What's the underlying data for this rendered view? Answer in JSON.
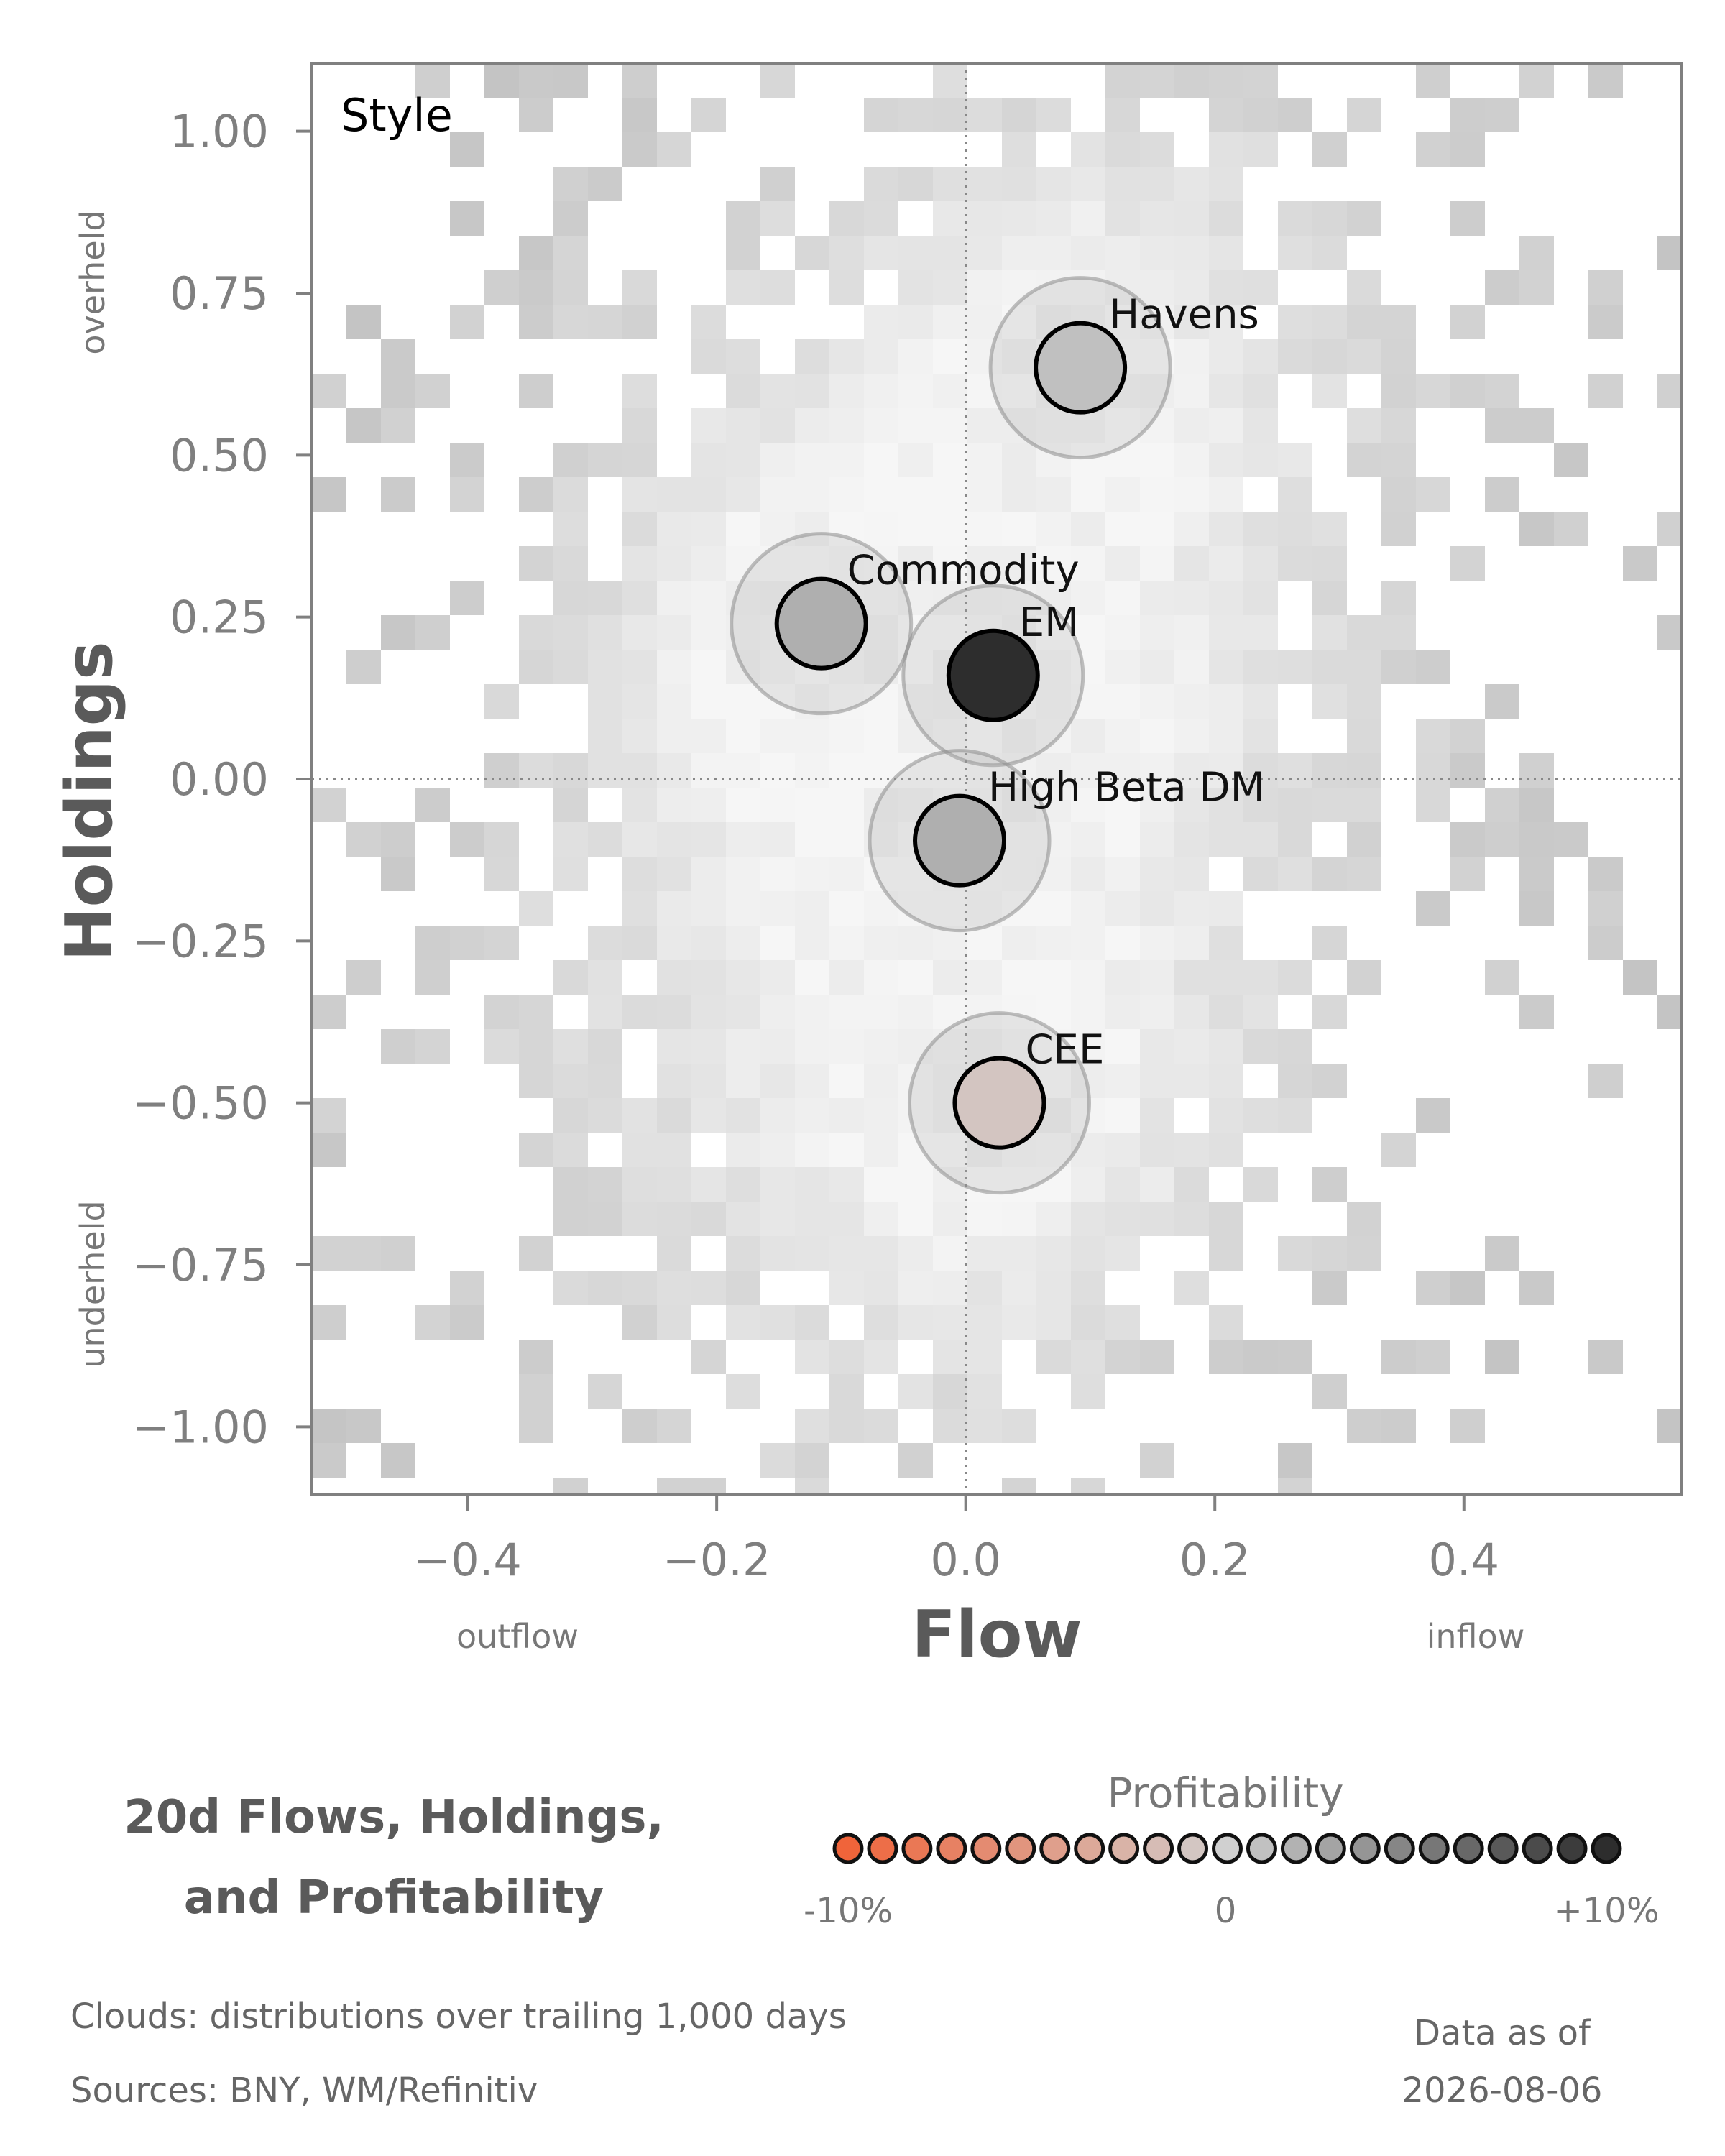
{
  "chart_data": {
    "type": "scatter",
    "title": "",
    "panel_label": "Style",
    "xlabel": "Flow",
    "ylabel": "Holdings",
    "x_hint_low": "outflow",
    "x_hint_high": "inflow",
    "y_hint_high": "overheld",
    "y_hint_low": "underheld",
    "xlim": [
      -0.525,
      0.575
    ],
    "ylim": [
      -1.105,
      1.105
    ],
    "xticks": [
      -0.4,
      -0.2,
      0.0,
      0.2,
      0.4
    ],
    "xtick_labels": [
      "−0.4",
      "−0.2",
      "0.0",
      "0.2",
      "0.4"
    ],
    "yticks": [
      1.0,
      0.75,
      0.5,
      0.25,
      0.0,
      -0.25,
      -0.5,
      -0.75,
      -1.0
    ],
    "ytick_labels": [
      "1.00",
      "0.75",
      "0.50",
      "0.25",
      "0.00",
      "−0.25",
      "−0.50",
      "−0.75",
      "−1.00"
    ],
    "grid": false,
    "reference_lines": {
      "x": 0.0,
      "y": 0.0
    },
    "points": [
      {
        "label": "Havens",
        "flow": 0.092,
        "holdings": 0.635,
        "profitability": 0.01
      },
      {
        "label": "Commodity",
        "flow": -0.116,
        "holdings": 0.24,
        "profitability": 0.02
      },
      {
        "label": "EM",
        "flow": 0.022,
        "holdings": 0.16,
        "profitability": 0.1
      },
      {
        "label": "High Beta DM",
        "flow": -0.005,
        "holdings": -0.095,
        "profitability": 0.02
      },
      {
        "label": "CEE",
        "flow": 0.027,
        "holdings": -0.5,
        "profitability": -0.01
      }
    ],
    "background": "2D histogram clouds of trailing flow/holdings distributions (grey)",
    "colorbar": {
      "title": "Profitability",
      "min_label": "-10%",
      "mid_label": "0",
      "max_label": "+10%",
      "min": -0.1,
      "max": 0.1,
      "low_color": "#f0643a",
      "mid_color": "#d0d0d0",
      "high_color": "#2d2d2d"
    }
  },
  "footer": {
    "title_line1": "20d Flows, Holdings,",
    "title_line2": "and Profitability",
    "note_clouds": "Clouds:  distributions over trailing 1,000 days",
    "note_sources": "Sources:  BNY, WM/Refinitiv",
    "asof_line1": "Data as of",
    "asof_line2": "2026-08-06"
  }
}
